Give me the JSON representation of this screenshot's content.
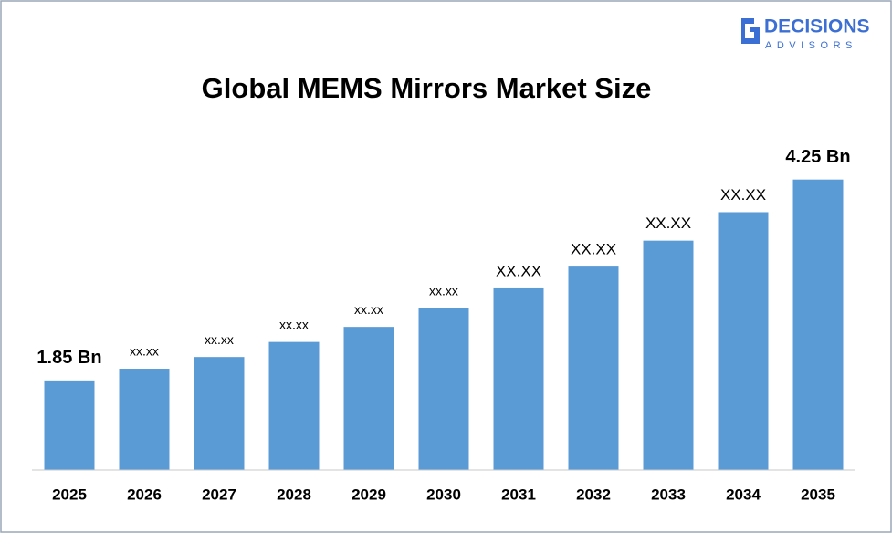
{
  "logo": {
    "name": "DECISIONS",
    "tagline": "ADVISORS"
  },
  "chart_data": {
    "type": "bar",
    "title": "Global MEMS Mirrors Market Size",
    "categories": [
      "2025",
      "2026",
      "2027",
      "2028",
      "2029",
      "2030",
      "2031",
      "2032",
      "2033",
      "2034",
      "2035"
    ],
    "values": [
      1.85,
      1.99,
      2.13,
      2.31,
      2.49,
      2.71,
      2.95,
      3.21,
      3.52,
      3.86,
      4.25
    ],
    "value_labels": [
      "1.85 Bn",
      "xx.xx",
      "xx.xx",
      "xx.xx",
      "xx.xx",
      "xx.xx",
      "XX.XX",
      "XX.XX",
      "XX.XX",
      "XX.XX",
      "4.25 Bn"
    ],
    "color": "#5b9bd5",
    "ylim": [
      0.78,
      4.65
    ]
  }
}
